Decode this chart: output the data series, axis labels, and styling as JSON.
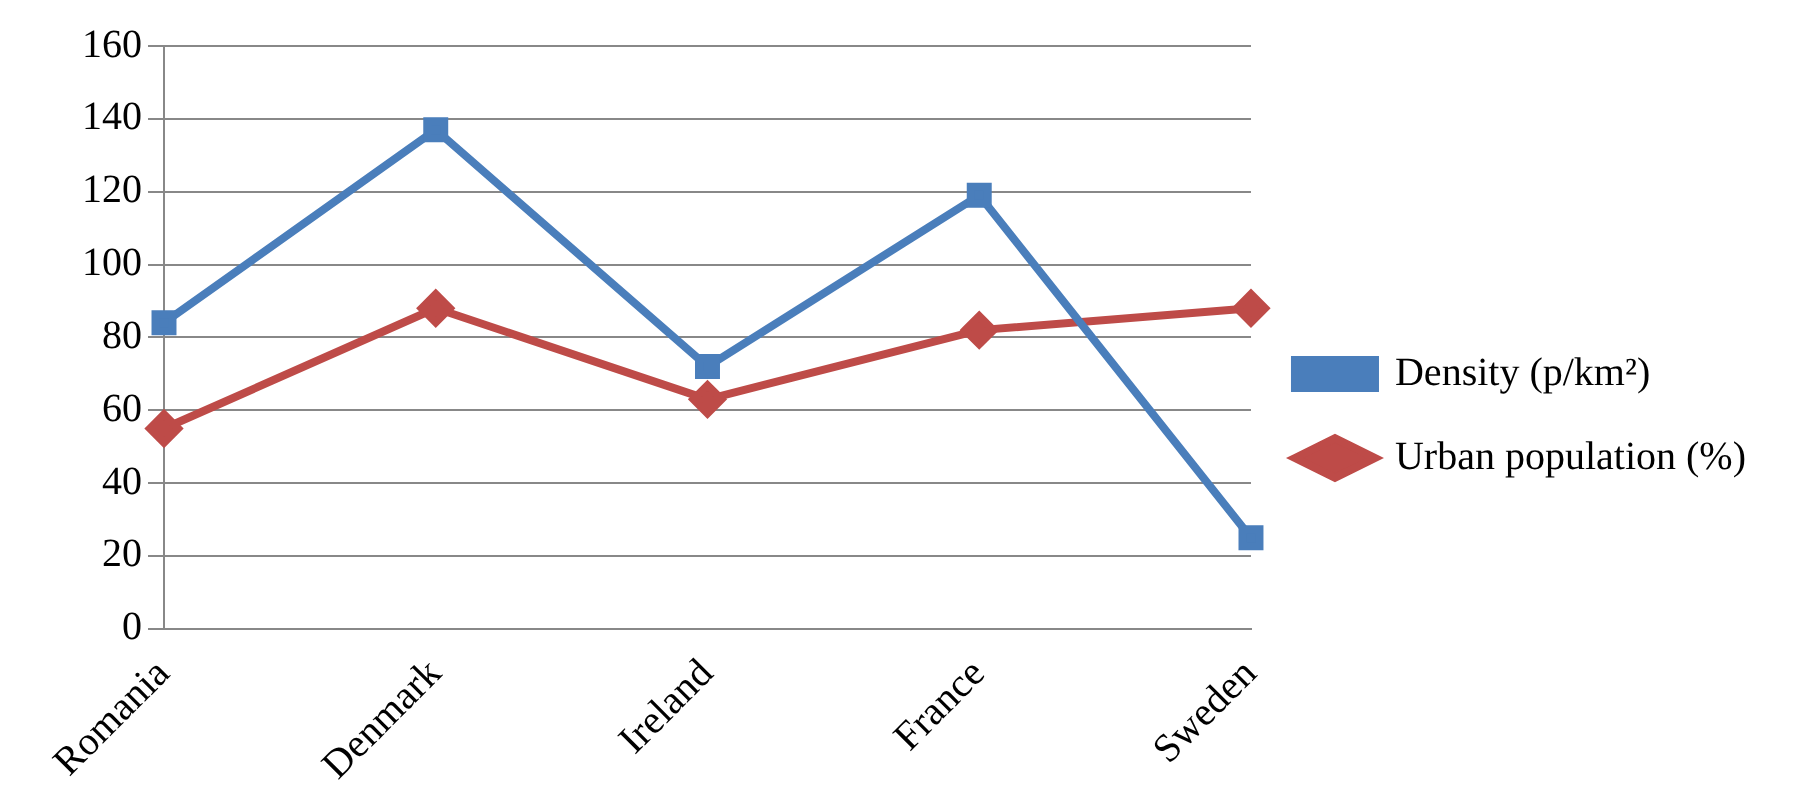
{
  "chart_data": {
    "type": "line",
    "categories": [
      "Romania",
      "Denmark",
      "Ireland",
      "France",
      "Sweden"
    ],
    "series": [
      {
        "name": "Density (p/km²)",
        "color": "#4a7ebb",
        "marker": "square",
        "values": [
          84,
          137,
          72,
          119,
          25
        ]
      },
      {
        "name": "Urban population (%)",
        "color": "#be4b48",
        "marker": "diamond",
        "values": [
          55,
          88,
          63,
          82,
          88
        ]
      }
    ],
    "ylim": [
      0,
      160
    ],
    "yticks": [
      0,
      20,
      40,
      60,
      80,
      100,
      120,
      140,
      160
    ],
    "grid": "y",
    "legend": "right",
    "line_style": "solid"
  }
}
